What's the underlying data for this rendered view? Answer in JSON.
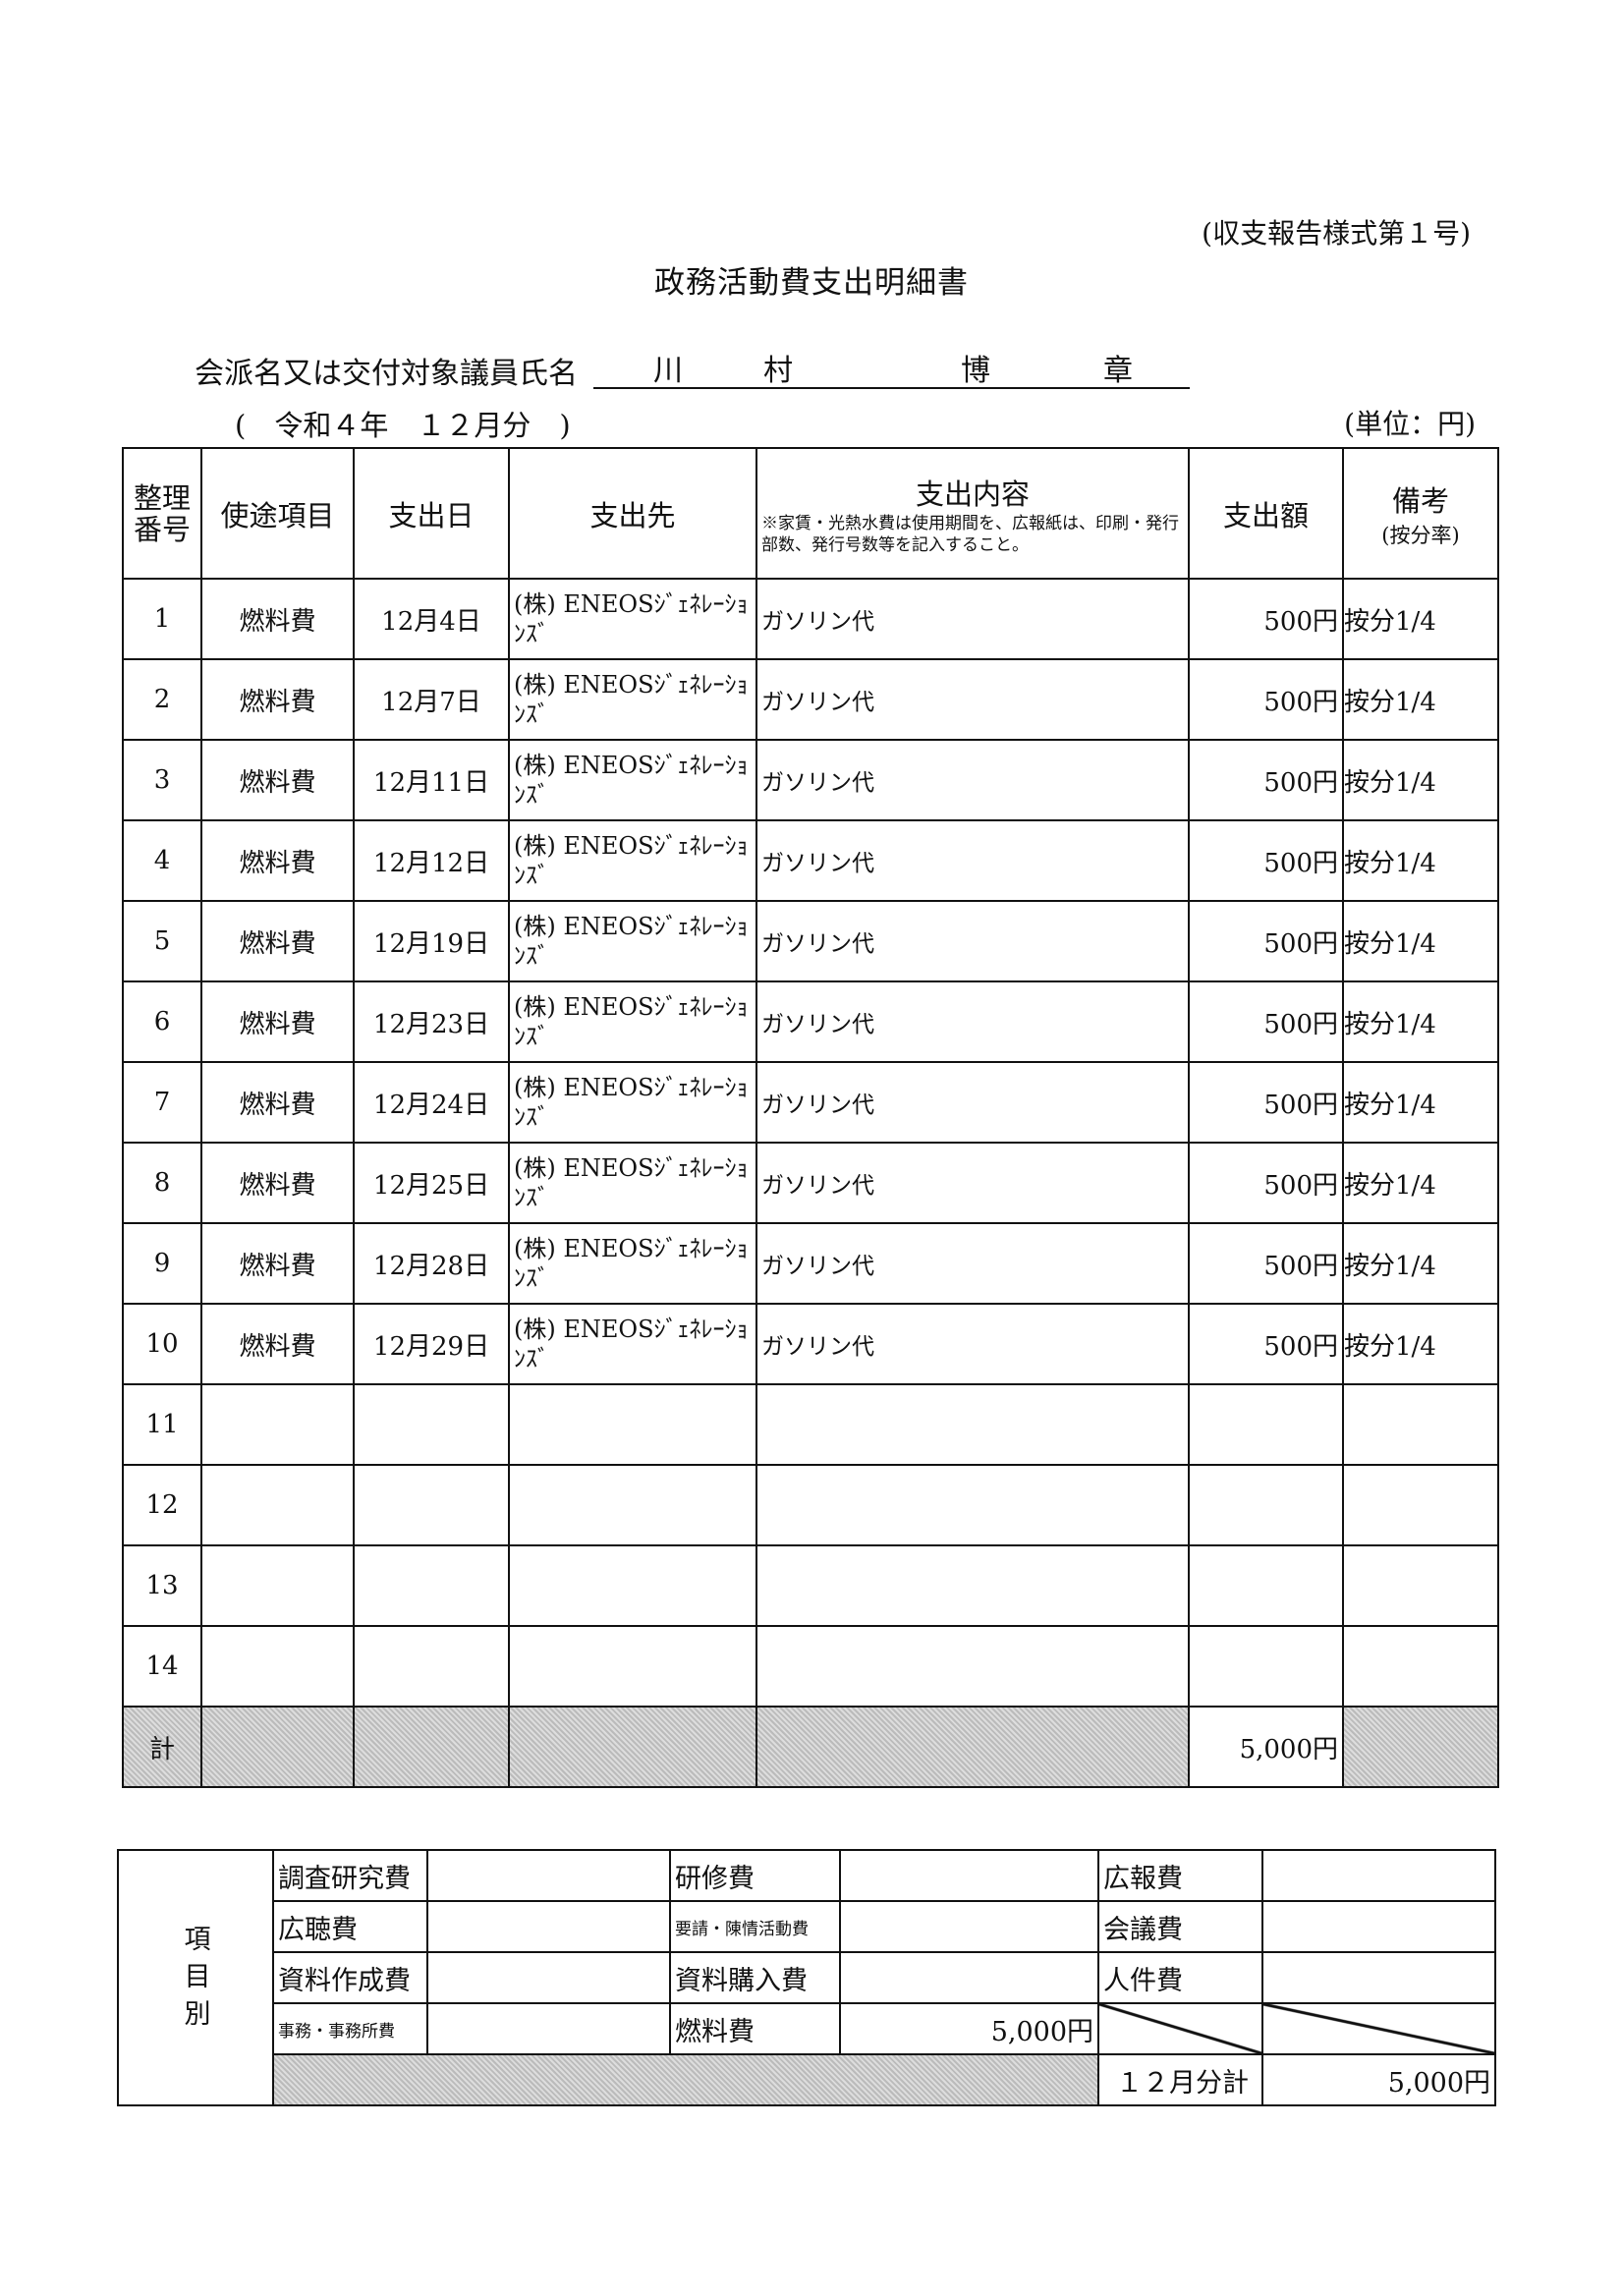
{
  "form_number": "(収支報告様式第１号)",
  "title": "政務活動費支出明細書",
  "name_label": "会派名又は交付対象議員氏名",
  "name_chars": [
    "川",
    "村",
    "博",
    "章"
  ],
  "period": "(　令和４年　１２月分　)",
  "unit": "(単位：円)",
  "headers": {
    "no": "整理\n番号",
    "item": "使途項目",
    "date": "支出日",
    "payee": "支出先",
    "content_title": "支出内容",
    "content_note": "※家賃・光熱水費は使用期間を、広報紙は、印刷・発行部数、発行号数等を記入すること。",
    "amount": "支出額",
    "remarks_title": "備考",
    "remarks_sub": "(按分率)"
  },
  "rows": [
    {
      "no": "1",
      "item": "燃料費",
      "date": "12月4日",
      "payee": "(株) ENEOSｼﾞｪﾈﾚｰｼｮﾝｽﾞ",
      "content": "ガソリン代",
      "amount": "500円",
      "remarks": "按分1/4"
    },
    {
      "no": "2",
      "item": "燃料費",
      "date": "12月7日",
      "payee": "(株) ENEOSｼﾞｪﾈﾚｰｼｮﾝｽﾞ",
      "content": "ガソリン代",
      "amount": "500円",
      "remarks": "按分1/4"
    },
    {
      "no": "3",
      "item": "燃料費",
      "date": "12月11日",
      "payee": "(株) ENEOSｼﾞｪﾈﾚｰｼｮﾝｽﾞ",
      "content": "ガソリン代",
      "amount": "500円",
      "remarks": "按分1/4"
    },
    {
      "no": "4",
      "item": "燃料費",
      "date": "12月12日",
      "payee": "(株) ENEOSｼﾞｪﾈﾚｰｼｮﾝｽﾞ",
      "content": "ガソリン代",
      "amount": "500円",
      "remarks": "按分1/4"
    },
    {
      "no": "5",
      "item": "燃料費",
      "date": "12月19日",
      "payee": "(株) ENEOSｼﾞｪﾈﾚｰｼｮﾝｽﾞ",
      "content": "ガソリン代",
      "amount": "500円",
      "remarks": "按分1/4"
    },
    {
      "no": "6",
      "item": "燃料費",
      "date": "12月23日",
      "payee": "(株) ENEOSｼﾞｪﾈﾚｰｼｮﾝｽﾞ",
      "content": "ガソリン代",
      "amount": "500円",
      "remarks": "按分1/4"
    },
    {
      "no": "7",
      "item": "燃料費",
      "date": "12月24日",
      "payee": "(株) ENEOSｼﾞｪﾈﾚｰｼｮﾝｽﾞ",
      "content": "ガソリン代",
      "amount": "500円",
      "remarks": "按分1/4"
    },
    {
      "no": "8",
      "item": "燃料費",
      "date": "12月25日",
      "payee": "(株) ENEOSｼﾞｪﾈﾚｰｼｮﾝｽﾞ",
      "content": "ガソリン代",
      "amount": "500円",
      "remarks": "按分1/4"
    },
    {
      "no": "9",
      "item": "燃料費",
      "date": "12月28日",
      "payee": "(株) ENEOSｼﾞｪﾈﾚｰｼｮﾝｽﾞ",
      "content": "ガソリン代",
      "amount": "500円",
      "remarks": "按分1/4"
    },
    {
      "no": "10",
      "item": "燃料費",
      "date": "12月29日",
      "payee": "(株) ENEOSｼﾞｪﾈﾚｰｼｮﾝｽﾞ",
      "content": "ガソリン代",
      "amount": "500円",
      "remarks": "按分1/4"
    },
    {
      "no": "11"
    },
    {
      "no": "12"
    },
    {
      "no": "13"
    },
    {
      "no": "14"
    }
  ],
  "total": {
    "label": "計",
    "amount": "5,000円"
  },
  "summary": {
    "side_label": "項\n目\n別",
    "cells": [
      [
        "調査研究費",
        "",
        "研修費",
        "",
        "広報費",
        ""
      ],
      [
        "広聴費",
        "",
        "要請・陳情活動費",
        "",
        "会議費",
        ""
      ],
      [
        "資料作成費",
        "",
        "資料購入費",
        "",
        "人件費",
        ""
      ],
      [
        "事務・事務所費",
        "",
        "燃料費",
        "5,000円",
        "",
        ""
      ]
    ],
    "month_total_label": "１２月分計",
    "month_total": "5,000円"
  }
}
